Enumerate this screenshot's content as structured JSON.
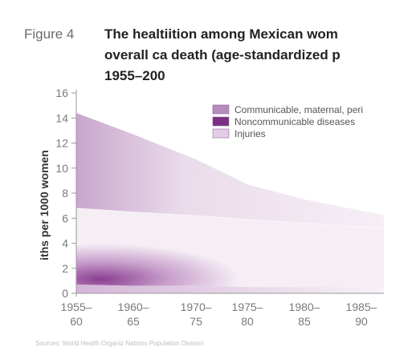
{
  "figure": {
    "label": "Figure 4",
    "title_line1": "The healtiition among Mexican wom",
    "title_line2": "overall ca death (age-standardized p",
    "title_line3": "1955–200",
    "source": "Sources: World Health Organiz Nations Population Division"
  },
  "chart_data": {
    "type": "area",
    "ylabel": "iths per 1000 women",
    "ylim": [
      0,
      16
    ],
    "yticks": [
      "0",
      "2",
      "4",
      "6",
      "8",
      "10",
      "12",
      "14",
      "16"
    ],
    "categories": [
      "1955–60",
      "1960–65",
      "1970–75",
      "1975–80",
      "1980–85",
      "1985–"
    ],
    "x_tick_labels": [
      {
        "top": "1955–",
        "bottom": "60"
      },
      {
        "top": "1960–",
        "bottom": "65"
      },
      {
        "top": "1970–",
        "bottom": "75"
      },
      {
        "top": "1975–",
        "bottom": "80"
      },
      {
        "top": "1980–",
        "bottom": "85"
      },
      {
        "top": "1985–",
        "bottom": "90"
      }
    ],
    "x_positions": [
      0,
      1,
      2.1,
      3,
      4,
      5
    ],
    "total": [
      14.4,
      12.7,
      10.7,
      8.7,
      7.5,
      6.6
    ],
    "series": [
      {
        "name": "Communicable, maternal, peri",
        "color": "#b98ac0"
      },
      {
        "name": "Noncommunicable diseases",
        "color": "#7a2f80"
      },
      {
        "name": "Injuries",
        "color": "#e3cde6"
      }
    ],
    "noncommunicable_top": [
      6.8,
      6.5,
      6.2,
      5.9,
      5.6,
      5.3
    ],
    "injuries_top": [
      0.7,
      0.6,
      0.6,
      0.5,
      0.5,
      0.5
    ],
    "legend_position": "top-right",
    "grid": false
  }
}
